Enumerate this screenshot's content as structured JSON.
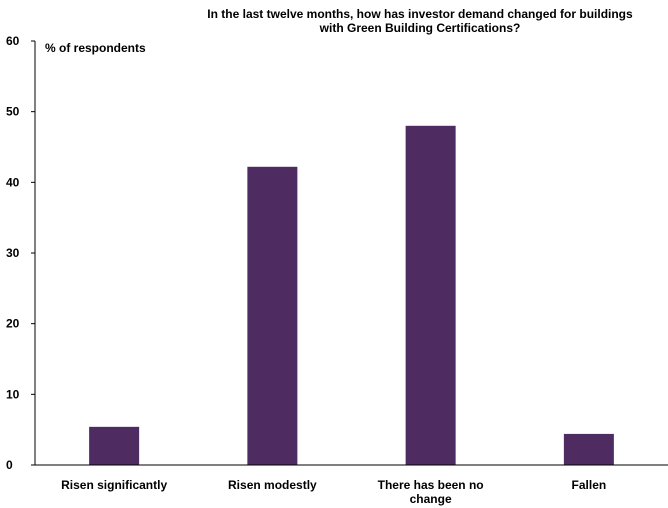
{
  "chart_data": {
    "type": "bar",
    "title_lines": [
      "In the last twelve months, how has investor demand changed for buildings",
      "with Green Building Certifications?"
    ],
    "ylabel": "% of respondents",
    "xlabel": "",
    "categories": [
      [
        "Risen significantly"
      ],
      [
        "Risen modestly"
      ],
      [
        "There has been no",
        "change"
      ],
      [
        "Fallen"
      ]
    ],
    "values": [
      5.4,
      42.2,
      48.0,
      4.4
    ],
    "ylim": [
      0,
      60
    ],
    "yticks": [
      0,
      10,
      20,
      30,
      40,
      50,
      60
    ],
    "grid": false,
    "legend": "none",
    "bar_color": "#4e2b60"
  }
}
